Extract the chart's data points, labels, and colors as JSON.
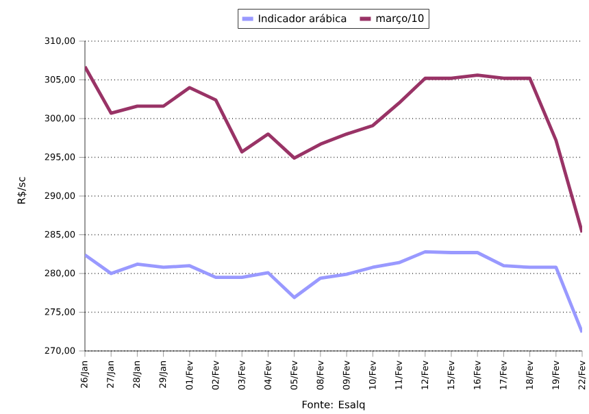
{
  "chart_data": {
    "type": "line",
    "ylabel": "R$/sc",
    "categories": [
      "26/Jan",
      "27/Jan",
      "28/Jan",
      "29/Jan",
      "01/Fev",
      "02/Fev",
      "03/Fev",
      "04/Fev",
      "05/Fev",
      "08/Fev",
      "09/Fev",
      "10/Fev",
      "11/Fev",
      "12/Fev",
      "15/Fev",
      "16/Fev",
      "17/Fev",
      "18/Fev",
      "19/Fev",
      "22/Fev"
    ],
    "series": [
      {
        "name": "Indicador arábica",
        "color": "#9999ff",
        "values": [
          282.4,
          280.0,
          281.2,
          280.8,
          281.0,
          279.5,
          279.5,
          280.1,
          276.9,
          279.4,
          279.9,
          280.8,
          281.4,
          282.8,
          282.7,
          282.7,
          281.0,
          280.8,
          280.8,
          272.4
        ]
      },
      {
        "name": "março/10",
        "color": "#993366",
        "values": [
          306.7,
          300.7,
          301.6,
          301.6,
          304.0,
          302.4,
          295.7,
          298.0,
          294.9,
          296.7,
          298.0,
          299.1,
          302.0,
          305.2,
          305.2,
          305.6,
          305.2,
          305.2,
          297.2,
          285.3
        ]
      }
    ],
    "ylim": [
      270,
      310
    ],
    "yticks": [
      {
        "value": 270,
        "label": "270,00"
      },
      {
        "value": 275,
        "label": "275,00"
      },
      {
        "value": 280,
        "label": "280,00"
      },
      {
        "value": 285,
        "label": "285,00"
      },
      {
        "value": 290,
        "label": "290,00"
      },
      {
        "value": 295,
        "label": "295,00"
      },
      {
        "value": 300,
        "label": "300,00"
      },
      {
        "value": 305,
        "label": "305,00"
      },
      {
        "value": 310,
        "label": "310,00"
      }
    ],
    "grid": "y",
    "legend": "top",
    "marker": "none",
    "line_style": "solid",
    "annotations": [
      "Fonte: Esalq"
    ]
  }
}
